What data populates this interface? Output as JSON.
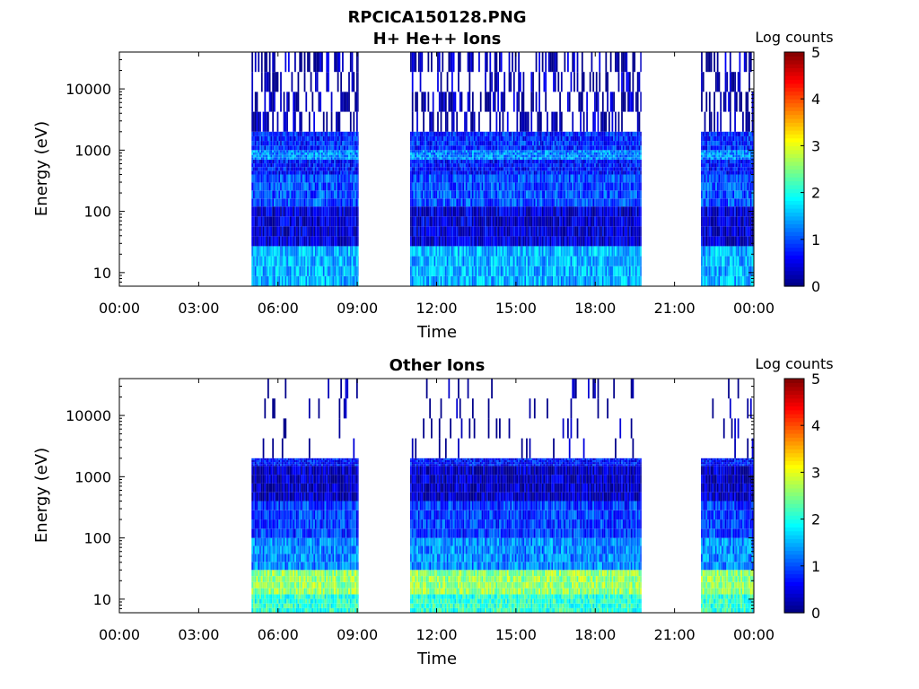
{
  "figure": {
    "title": "RPCICA150128.PNG"
  },
  "chart_data": [
    {
      "type": "heatmap",
      "title": "H+ He++ Ions",
      "xlabel": "Time",
      "ylabel": "Energy (eV)",
      "x_ticks": [
        "00:00",
        "03:00",
        "06:00",
        "09:00",
        "12:00",
        "15:00",
        "18:00",
        "21:00",
        "00:00"
      ],
      "x_range_hours": [
        0,
        24
      ],
      "y_scale": "log",
      "y_ticks": [
        "10",
        "100",
        "1000",
        "10000"
      ],
      "y_range_ev": [
        6,
        40000
      ],
      "colorbar": {
        "label": "Log counts",
        "range": [
          0,
          5
        ],
        "ticks": [
          "0",
          "1",
          "2",
          "3",
          "4",
          "5"
        ],
        "colormap": "jet"
      },
      "data_intervals_hours": [
        [
          5.0,
          9.05
        ],
        [
          11.0,
          19.75
        ],
        [
          22.0,
          24.0
        ]
      ],
      "bands": [
        {
          "e_lo": 6,
          "e_hi": 27,
          "level": 1.5
        },
        {
          "e_lo": 27,
          "e_hi": 120,
          "level": 0.4
        },
        {
          "e_lo": 120,
          "e_hi": 400,
          "level": 1.0
        },
        {
          "e_lo": 400,
          "e_hi": 700,
          "level": 0.7
        },
        {
          "e_lo": 700,
          "e_hi": 1000,
          "level": 1.3
        },
        {
          "e_lo": 1000,
          "e_hi": 2000,
          "level": 0.8
        },
        {
          "e_lo": 2000,
          "e_hi": 40000,
          "level": 0.15
        }
      ]
    },
    {
      "type": "heatmap",
      "title": "Other Ions",
      "xlabel": "Time",
      "ylabel": "Energy (eV)",
      "x_ticks": [
        "00:00",
        "03:00",
        "06:00",
        "09:00",
        "12:00",
        "15:00",
        "18:00",
        "21:00",
        "00:00"
      ],
      "x_range_hours": [
        0,
        24
      ],
      "y_scale": "log",
      "y_ticks": [
        "10",
        "100",
        "1000",
        "10000"
      ],
      "y_range_ev": [
        6,
        40000
      ],
      "colorbar": {
        "label": "Log counts",
        "range": [
          0,
          5
        ],
        "ticks": [
          "0",
          "1",
          "2",
          "3",
          "4",
          "5"
        ],
        "colormap": "jet"
      },
      "data_intervals_hours": [
        [
          5.0,
          9.05
        ],
        [
          11.0,
          19.75
        ],
        [
          22.0,
          24.0
        ]
      ],
      "bands": [
        {
          "e_lo": 6,
          "e_hi": 12,
          "level": 2.1
        },
        {
          "e_lo": 12,
          "e_hi": 30,
          "level": 2.6
        },
        {
          "e_lo": 30,
          "e_hi": 100,
          "level": 1.3
        },
        {
          "e_lo": 100,
          "e_hi": 400,
          "level": 0.9
        },
        {
          "e_lo": 400,
          "e_hi": 1500,
          "level": 0.3
        },
        {
          "e_lo": 1500,
          "e_hi": 2000,
          "level": 0.7
        },
        {
          "e_lo": 2000,
          "e_hi": 40000,
          "level": 0.02
        }
      ]
    }
  ]
}
